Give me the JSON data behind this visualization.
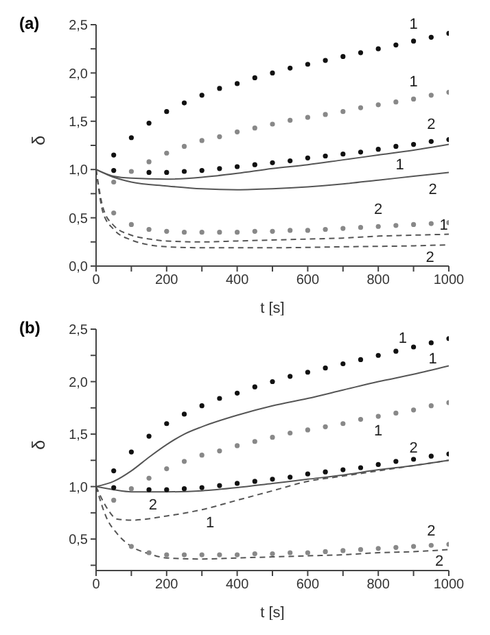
{
  "chart_data": [
    {
      "type": "scatter",
      "title": "(a)",
      "xlabel": "t [s]",
      "ylabel": "δ",
      "xlim": [
        0,
        1000
      ],
      "ylim": [
        0,
        2.5
      ],
      "grid": false,
      "legend": false,
      "xticks": [
        0,
        {
          "value": 100,
          "label": null
        },
        200,
        {
          "value": 300,
          "label": null
        },
        400,
        {
          "value": 500,
          "label": null
        },
        600,
        {
          "value": 700,
          "label": null
        },
        800,
        {
          "value": 900,
          "label": null
        },
        1000
      ],
      "yticks": [
        {
          "value": 0,
          "label": "0,0"
        },
        {
          "value": 0.25,
          "label": null
        },
        {
          "value": 0.5,
          "label": "0,5"
        },
        {
          "value": 0.75,
          "label": null
        },
        {
          "value": 1,
          "label": "1,0"
        },
        {
          "value": 1.25,
          "label": null
        },
        {
          "value": 1.5,
          "label": "1,5"
        },
        {
          "value": 1.75,
          "label": null
        },
        {
          "value": 2,
          "label": "2,0"
        },
        {
          "value": 2.25,
          "label": null
        },
        {
          "value": 2.5,
          "label": "2,5"
        }
      ],
      "series": [
        {
          "name": "1",
          "marker": "circle",
          "color": "#111111",
          "x": [
            50,
            100,
            150,
            200,
            250,
            300,
            350,
            400,
            450,
            500,
            550,
            600,
            650,
            700,
            750,
            800,
            850,
            900,
            950,
            1000
          ],
          "values": [
            1.15,
            1.33,
            1.48,
            1.6,
            1.69,
            1.77,
            1.84,
            1.89,
            1.95,
            2.0,
            2.05,
            2.09,
            2.13,
            2.17,
            2.21,
            2.25,
            2.29,
            2.33,
            2.37,
            2.41
          ]
        },
        {
          "name": "1",
          "marker": "circle",
          "color": "#888888",
          "x": [
            50,
            100,
            150,
            200,
            250,
            300,
            350,
            400,
            450,
            500,
            550,
            600,
            650,
            700,
            750,
            800,
            850,
            900,
            950,
            1000
          ],
          "values": [
            0.87,
            0.98,
            1.08,
            1.17,
            1.24,
            1.3,
            1.34,
            1.39,
            1.43,
            1.47,
            1.51,
            1.54,
            1.57,
            1.6,
            1.64,
            1.67,
            1.7,
            1.73,
            1.77,
            1.8
          ]
        },
        {
          "name": "2",
          "marker": "circle",
          "color": "#111111",
          "x": [
            50,
            150,
            200,
            250,
            300,
            350,
            400,
            450,
            500,
            550,
            600,
            650,
            700,
            750,
            800,
            850,
            900,
            950,
            1000
          ],
          "values": [
            0.99,
            0.97,
            0.97,
            0.98,
            0.99,
            1.01,
            1.03,
            1.05,
            1.07,
            1.09,
            1.12,
            1.14,
            1.16,
            1.18,
            1.21,
            1.24,
            1.26,
            1.29,
            1.31
          ]
        },
        {
          "name": "2",
          "marker": "circle",
          "color": "#888888",
          "x": [
            50,
            100,
            150,
            200,
            250,
            300,
            350,
            400,
            450,
            500,
            550,
            600,
            650,
            700,
            750,
            800,
            850,
            900,
            950,
            1000
          ],
          "values": [
            0.55,
            0.43,
            0.38,
            0.36,
            0.35,
            0.35,
            0.35,
            0.35,
            0.36,
            0.36,
            0.37,
            0.37,
            0.38,
            0.39,
            0.4,
            0.41,
            0.42,
            0.43,
            0.44,
            0.45
          ]
        },
        {
          "name": "1",
          "type": "line",
          "line_style": "solid",
          "color": "#555555",
          "x": [
            0,
            50,
            100,
            200,
            300,
            400,
            500,
            600,
            700,
            800,
            900,
            1000
          ],
          "values": [
            1.0,
            0.93,
            0.91,
            0.9,
            0.92,
            0.96,
            1.01,
            1.05,
            1.1,
            1.15,
            1.2,
            1.26
          ]
        },
        {
          "name": "2",
          "type": "line",
          "line_style": "solid",
          "color": "#555555",
          "x": [
            0,
            50,
            100,
            200,
            300,
            400,
            500,
            600,
            700,
            800,
            900,
            1000
          ],
          "values": [
            1.0,
            0.92,
            0.87,
            0.83,
            0.8,
            0.79,
            0.8,
            0.82,
            0.85,
            0.89,
            0.93,
            0.97
          ]
        },
        {
          "name": "1",
          "type": "line",
          "line_style": "dashed",
          "color": "#555555",
          "x": [
            0,
            20,
            50,
            100,
            150,
            200,
            300,
            400,
            500,
            600,
            700,
            800,
            900,
            1000
          ],
          "values": [
            1.0,
            0.6,
            0.42,
            0.32,
            0.28,
            0.26,
            0.25,
            0.26,
            0.27,
            0.28,
            0.29,
            0.31,
            0.32,
            0.33
          ]
        },
        {
          "name": "2",
          "type": "line",
          "line_style": "dashed",
          "color": "#555555",
          "x": [
            0,
            20,
            50,
            100,
            150,
            200,
            300,
            500,
            700,
            900,
            1000
          ],
          "values": [
            1.0,
            0.55,
            0.38,
            0.27,
            0.22,
            0.2,
            0.19,
            0.19,
            0.2,
            0.21,
            0.22
          ]
        }
      ]
    },
    {
      "type": "scatter",
      "title": "(b)",
      "xlabel": "t [s]",
      "ylabel": "δ",
      "xlim": [
        0,
        1000
      ],
      "ylim": [
        0.2,
        2.5
      ],
      "grid": false,
      "legend": false,
      "xticks": [
        0,
        {
          "value": 100,
          "label": null
        },
        200,
        {
          "value": 300,
          "label": null
        },
        400,
        {
          "value": 500,
          "label": null
        },
        600,
        {
          "value": 700,
          "label": null
        },
        800,
        {
          "value": 900,
          "label": null
        },
        1000
      ],
      "yticks": [
        {
          "value": 0.25,
          "label": null
        },
        {
          "value": 0.5,
          "label": "0,5"
        },
        {
          "value": 0.75,
          "label": null
        },
        {
          "value": 1,
          "label": "1,0"
        },
        {
          "value": 1.25,
          "label": null
        },
        {
          "value": 1.5,
          "label": "1,5"
        },
        {
          "value": 1.75,
          "label": null
        },
        {
          "value": 2,
          "label": "2,0"
        },
        {
          "value": 2.25,
          "label": null
        },
        {
          "value": 2.5,
          "label": "2,5"
        }
      ],
      "series": [
        {
          "name": "1",
          "marker": "circle",
          "color": "#111111",
          "x": [
            50,
            100,
            150,
            200,
            250,
            300,
            350,
            400,
            450,
            500,
            550,
            600,
            650,
            700,
            750,
            800,
            850,
            900,
            950,
            1000
          ],
          "values": [
            1.15,
            1.33,
            1.48,
            1.6,
            1.69,
            1.77,
            1.84,
            1.89,
            1.95,
            2.0,
            2.05,
            2.09,
            2.13,
            2.17,
            2.21,
            2.25,
            2.29,
            2.33,
            2.37,
            2.41
          ]
        },
        {
          "name": "1",
          "marker": "circle",
          "color": "#888888",
          "x": [
            50,
            100,
            150,
            200,
            250,
            300,
            350,
            400,
            450,
            500,
            550,
            600,
            650,
            700,
            750,
            800,
            850,
            900,
            950,
            1000
          ],
          "values": [
            0.87,
            0.98,
            1.08,
            1.17,
            1.24,
            1.3,
            1.34,
            1.39,
            1.43,
            1.47,
            1.51,
            1.54,
            1.57,
            1.6,
            1.64,
            1.67,
            1.7,
            1.73,
            1.77,
            1.8
          ]
        },
        {
          "name": "2",
          "marker": "circle",
          "color": "#111111",
          "x": [
            50,
            150,
            200,
            250,
            300,
            350,
            400,
            450,
            500,
            550,
            600,
            650,
            700,
            750,
            800,
            850,
            900,
            950,
            1000
          ],
          "values": [
            0.99,
            0.97,
            0.97,
            0.98,
            0.99,
            1.01,
            1.03,
            1.05,
            1.07,
            1.09,
            1.12,
            1.14,
            1.16,
            1.18,
            1.21,
            1.24,
            1.26,
            1.29,
            1.31
          ]
        },
        {
          "name": "2",
          "marker": "circle",
          "color": "#888888",
          "x": [
            100,
            150,
            200,
            250,
            300,
            350,
            400,
            450,
            500,
            550,
            600,
            650,
            700,
            750,
            800,
            850,
            900,
            950,
            1000
          ],
          "values": [
            0.43,
            0.37,
            0.35,
            0.35,
            0.35,
            0.35,
            0.35,
            0.36,
            0.36,
            0.37,
            0.37,
            0.38,
            0.39,
            0.4,
            0.41,
            0.42,
            0.43,
            0.44,
            0.45
          ]
        },
        {
          "name": "1",
          "type": "line",
          "line_style": "solid",
          "color": "#555555",
          "x": [
            0,
            50,
            100,
            150,
            200,
            250,
            300,
            400,
            500,
            600,
            700,
            800,
            900,
            1000
          ],
          "values": [
            1.0,
            1.05,
            1.15,
            1.28,
            1.4,
            1.5,
            1.57,
            1.68,
            1.77,
            1.84,
            1.92,
            2.0,
            2.07,
            2.15
          ]
        },
        {
          "name": "2",
          "type": "line",
          "line_style": "solid",
          "color": "#555555",
          "x": [
            0,
            50,
            100,
            200,
            300,
            400,
            500,
            600,
            700,
            800,
            900,
            1000
          ],
          "values": [
            1.0,
            0.97,
            0.95,
            0.95,
            0.96,
            0.99,
            1.03,
            1.07,
            1.11,
            1.16,
            1.2,
            1.25
          ]
        },
        {
          "name": "1",
          "type": "line",
          "line_style": "dashed",
          "color": "#555555",
          "x": [
            0,
            30,
            60,
            100,
            200,
            300,
            400,
            500,
            600,
            700,
            800,
            900,
            1000
          ],
          "values": [
            1.0,
            0.8,
            0.69,
            0.68,
            0.72,
            0.78,
            0.87,
            0.96,
            1.05,
            1.1,
            1.15,
            1.2,
            1.25
          ]
        },
        {
          "name": "2",
          "type": "line",
          "line_style": "dashed",
          "color": "#555555",
          "x": [
            0,
            30,
            60,
            100,
            150,
            200,
            300,
            400,
            500,
            600,
            700,
            800,
            900,
            1000
          ],
          "values": [
            1.0,
            0.7,
            0.55,
            0.43,
            0.36,
            0.32,
            0.31,
            0.32,
            0.33,
            0.34,
            0.35,
            0.37,
            0.38,
            0.4
          ]
        }
      ]
    }
  ]
}
